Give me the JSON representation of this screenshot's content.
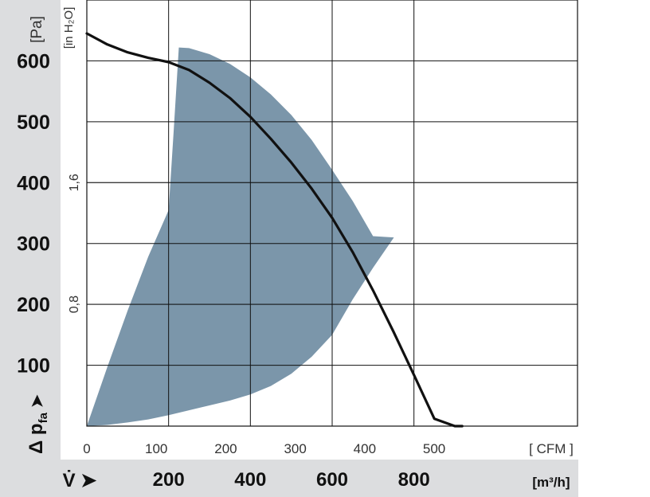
{
  "chart_data": {
    "type": "line",
    "x_primary": {
      "unit_label": "[m³/h]",
      "tick_labels": [
        "200",
        "400",
        "600",
        "800"
      ],
      "ticks": [
        200,
        400,
        600,
        800
      ],
      "range": [
        0,
        1200
      ]
    },
    "x_secondary": {
      "unit_label": "[ CFM ]",
      "tick_labels": [
        "0",
        "100",
        "200",
        "300",
        "400",
        "500"
      ],
      "ticks": [
        0,
        100,
        200,
        300,
        400,
        500
      ]
    },
    "y_primary": {
      "unit_label": "[Pa]",
      "tick_labels": [
        "100",
        "200",
        "300",
        "400",
        "500",
        "600"
      ],
      "ticks": [
        100,
        200,
        300,
        400,
        500,
        600
      ],
      "range": [
        0,
        700
      ]
    },
    "y_secondary": {
      "unit_label": "[in H₂O]",
      "tick_labels": [
        "0,8",
        "1,6"
      ],
      "ticks": [
        200,
        400
      ]
    },
    "x_indicator": "V̇ ➤",
    "y_indicator": "Δ p",
    "y_indicator_sub": "fa",
    "y_indicator_arrow": "➤",
    "grid": true,
    "series": [
      {
        "color": "#111111",
        "x": [
          0,
          50,
          100,
          150,
          200,
          250,
          300,
          350,
          400,
          450,
          500,
          550,
          600,
          650,
          700,
          750,
          800,
          850,
          900,
          918
        ],
        "y": [
          645,
          627,
          614,
          605,
          598,
          585,
          564,
          539,
          508,
          472,
          433,
          390,
          342,
          286,
          223,
          155,
          84,
          12,
          -20,
          -20
        ]
      }
    ],
    "shaded_region": {
      "color": "#7b96aa",
      "x": [
        0,
        50,
        100,
        150,
        200,
        212,
        225,
        250,
        300,
        350,
        400,
        450,
        500,
        550,
        600,
        650,
        700,
        751,
        700,
        650,
        600,
        550,
        500,
        450,
        400,
        350,
        300,
        250,
        200,
        150,
        100,
        50,
        0
      ],
      "y": [
        0,
        97,
        190,
        278,
        355,
        480,
        622,
        621,
        611,
        595,
        573,
        545,
        511,
        470,
        421,
        370,
        312,
        310,
        260,
        208,
        150,
        114,
        86,
        66,
        52,
        42,
        34,
        26,
        18,
        11,
        6,
        2,
        0
      ]
    }
  }
}
